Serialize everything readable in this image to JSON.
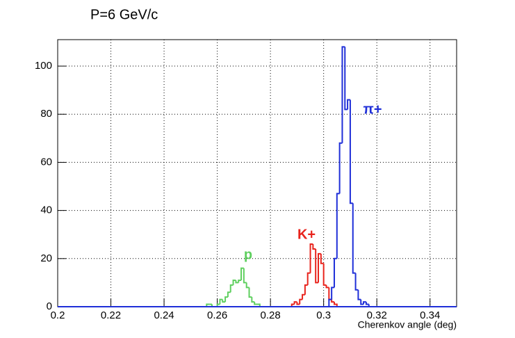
{
  "chart_data": {
    "type": "histogram",
    "title": "P=6 GeV/c",
    "x_label": "Cherenkov angle (deg)",
    "xlim": [
      0.2,
      0.35
    ],
    "xticks": [
      0.2,
      0.22,
      0.24,
      0.26,
      0.28,
      0.3,
      0.32,
      0.34
    ],
    "ylim": [
      0,
      111
    ],
    "yticks": [
      0,
      20,
      40,
      60,
      80,
      100
    ],
    "grid": true,
    "series": [
      {
        "name": "p",
        "color": "#5fcf5f",
        "bins": [
          0.256,
          0.257,
          0.258,
          0.259,
          0.26,
          0.261,
          0.262,
          0.263,
          0.264,
          0.265,
          0.266,
          0.267,
          0.268,
          0.269,
          0.27,
          0.271,
          0.272,
          0.273,
          0.274,
          0.275,
          0.276
        ],
        "values": [
          1,
          1,
          0,
          0,
          1,
          3,
          2,
          4,
          6,
          9,
          11,
          10,
          11,
          16,
          10,
          8,
          4,
          2,
          1,
          1
        ]
      },
      {
        "name": "K+",
        "color": "#e8231c",
        "bins": [
          0.288,
          0.289,
          0.29,
          0.291,
          0.292,
          0.293,
          0.294,
          0.295,
          0.296,
          0.297,
          0.298,
          0.299,
          0.3,
          0.301,
          0.302,
          0.303,
          0.304,
          0.305
        ],
        "values": [
          1,
          2,
          1,
          3,
          5,
          9,
          14,
          26,
          24,
          10,
          22,
          18,
          9,
          8,
          3,
          2,
          1
        ]
      },
      {
        "name": "π+",
        "color": "#1f2fd8",
        "bins": [
          0.302,
          0.303,
          0.304,
          0.305,
          0.306,
          0.307,
          0.308,
          0.309,
          0.31,
          0.311,
          0.312,
          0.313,
          0.314,
          0.315,
          0.316,
          0.317,
          0.318
        ],
        "values": [
          3,
          8,
          20,
          47,
          68,
          108,
          82,
          86,
          43,
          14,
          7,
          3,
          1,
          2,
          1,
          0
        ]
      }
    ]
  }
}
